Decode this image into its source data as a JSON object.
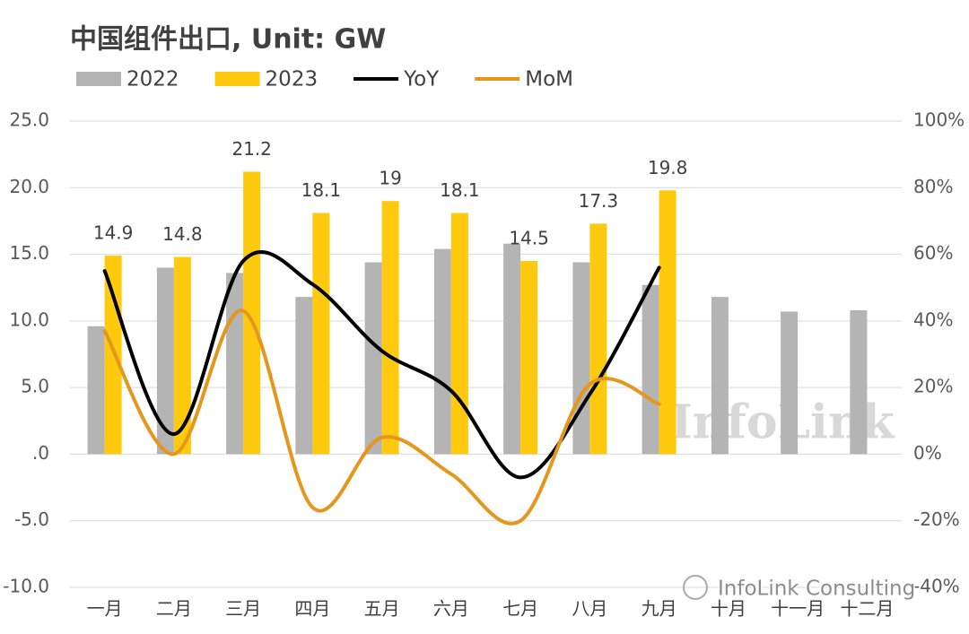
{
  "chart_data": {
    "type": "bar",
    "title": "中国组件出口, Unit: GW",
    "categories": [
      "一月",
      "二月",
      "三月",
      "四月",
      "五月",
      "六月",
      "七月",
      "八月",
      "九月",
      "十月",
      "十一月",
      "十二月"
    ],
    "series": [
      {
        "name": "2022",
        "color": "#b4b4b4",
        "values": [
          9.6,
          14.0,
          13.6,
          11.8,
          14.4,
          15.4,
          15.8,
          14.4,
          12.7,
          11.8,
          10.7,
          10.8
        ]
      },
      {
        "name": "2023",
        "color": "#ffc90e",
        "values": [
          14.9,
          14.8,
          21.2,
          18.1,
          19.0,
          18.1,
          14.5,
          17.3,
          19.8,
          null,
          null,
          null
        ]
      },
      {
        "name": "YoY",
        "color": "#000000",
        "type": "line",
        "axis": "y2",
        "values": [
          55,
          6,
          58,
          51,
          31,
          19,
          -7,
          18,
          56,
          null,
          null,
          null
        ]
      },
      {
        "name": "MoM",
        "color": "#e5961d",
        "type": "line",
        "axis": "y2",
        "values": [
          37,
          0,
          43,
          -16,
          5,
          -6,
          -20,
          21,
          15,
          null,
          null,
          null
        ]
      }
    ],
    "ylim": [
      -10,
      25
    ],
    "yticks": [
      {
        "value": 25,
        "label": "25.0"
      },
      {
        "value": 20,
        "label": "20.0"
      },
      {
        "value": 15,
        "label": "15.0"
      },
      {
        "value": 10,
        "label": "10.0"
      },
      {
        "value": 5,
        "label": "5.0"
      },
      {
        "value": 0,
        "label": ".0"
      },
      {
        "value": -5,
        "label": "-5.0"
      },
      {
        "value": -10,
        "label": "-10.0"
      }
    ],
    "y2lim": [
      -40,
      100
    ],
    "y2ticks": [
      {
        "value": 100,
        "label": "100%"
      },
      {
        "value": 80,
        "label": "80%"
      },
      {
        "value": 60,
        "label": "60%"
      },
      {
        "value": 40,
        "label": "40%"
      },
      {
        "value": 20,
        "label": "20%"
      },
      {
        "value": 0,
        "label": "0%"
      },
      {
        "value": -20,
        "label": "-20%"
      },
      {
        "value": -40,
        "label": "-40%"
      }
    ],
    "grid": true,
    "data_labels_series": 1,
    "watermark": "InfoLink",
    "watermark_footer": "InfoLink Consulting"
  }
}
